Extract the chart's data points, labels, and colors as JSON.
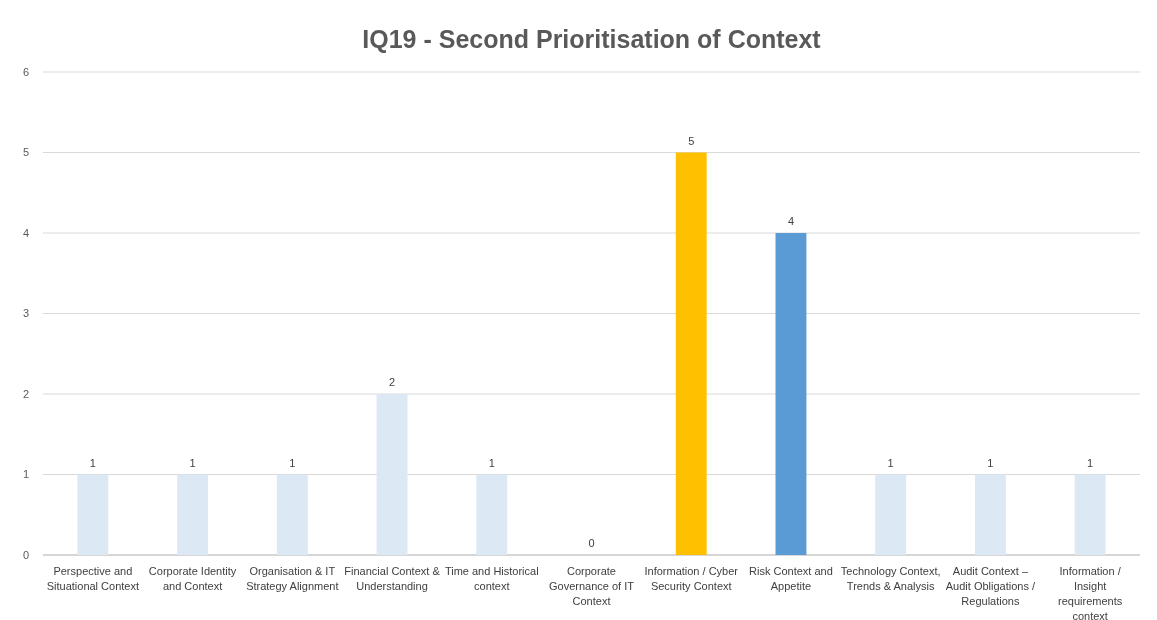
{
  "chart_data": {
    "type": "bar",
    "title": "IQ19 - Second Prioritisation of Context",
    "categories": [
      "Perspective and Situational Context",
      "Corporate Identity and Context",
      "Organisation & IT Strategy Alignment",
      "Financial Context & Understanding",
      "Time and Historical context",
      "Corporate Governance of IT Context",
      "Information / Cyber Security Context",
      "Risk Context and Appetite",
      "Technology Context, Trends & Analysis",
      "Audit Context – Audit Obligations / Regulations",
      "Information / Insight requirements context"
    ],
    "values": [
      1,
      1,
      1,
      2,
      1,
      0,
      5,
      4,
      1,
      1,
      1
    ],
    "colors": [
      "#dde8f5",
      "#dde8f5",
      "#dde8f5",
      "#dde8f5",
      "#dde8f5",
      "#dde8f5",
      "#ffc000",
      "#5b9bd5",
      "#dde8f5",
      "#dde8f5",
      "#dde8f5"
    ],
    "ylim": [
      0,
      6
    ],
    "yticks": [
      0,
      1,
      2,
      3,
      4,
      5,
      6
    ],
    "grid": "y",
    "data_labels": true
  }
}
